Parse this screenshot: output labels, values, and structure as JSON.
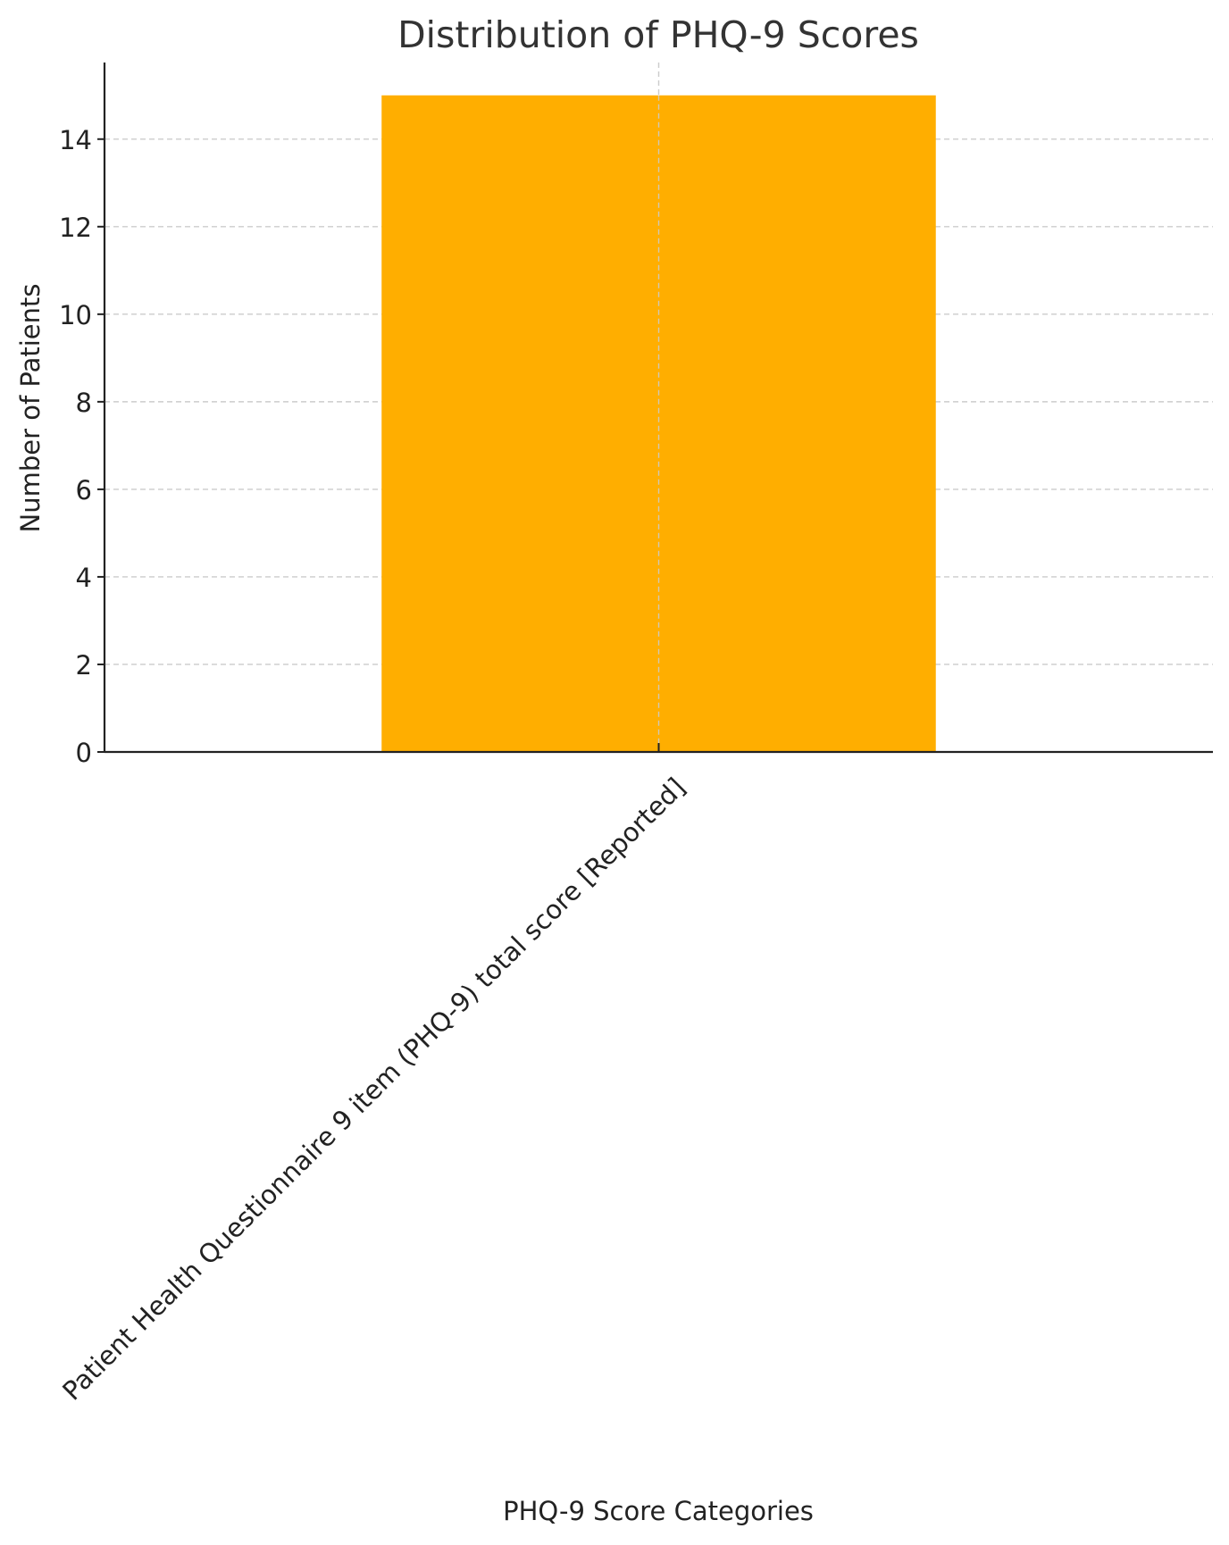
{
  "chart_data": {
    "type": "bar",
    "title": "Distribution of PHQ-9 Scores",
    "xlabel": "PHQ-9 Score Categories",
    "ylabel": "Number of Patients",
    "categories": [
      "Patient Health Questionnaire 9 item (PHQ-9) total score [Reported]"
    ],
    "values": [
      15
    ],
    "ylim": [
      0,
      15.75
    ],
    "yticks": [
      0,
      2,
      4,
      6,
      8,
      10,
      12,
      14
    ],
    "grid": true,
    "bar_color": "#FFAE00",
    "grid_color": "#cccccc",
    "axis_color": "#222222",
    "text_color": "#333333"
  }
}
